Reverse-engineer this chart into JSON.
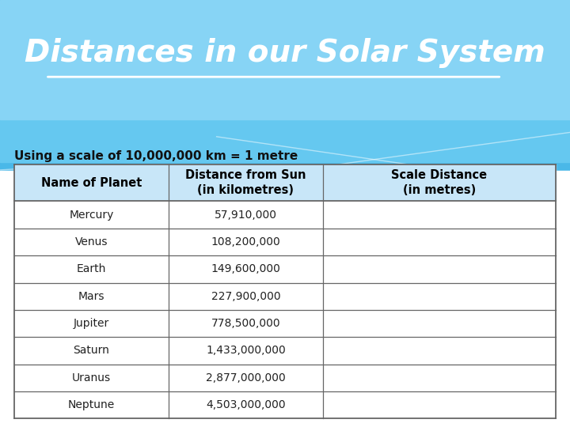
{
  "title": "Distances in our Solar System",
  "subtitle": "Using a scale of 10,000,000 km = 1 metre",
  "col_headers_line1": [
    "Name of Planet",
    "Distance from Sun",
    "Scale Distance"
  ],
  "col_headers_line2": [
    "",
    "(in kilometres)",
    "(in metres)"
  ],
  "planets": [
    "Mercury",
    "Venus",
    "Earth",
    "Mars",
    "Jupiter",
    "Saturn",
    "Uranus",
    "Neptune"
  ],
  "distances": [
    "57,910,000",
    "108,200,000",
    "149,600,000",
    "227,900,000",
    "778,500,000",
    "1,433,000,000",
    "2,877,000,000",
    "4,503,000,000"
  ],
  "bg_blue_dark": "#4ab8e8",
  "bg_blue_mid": "#65c8f0",
  "bg_blue_light": "#87d4f5",
  "bg_white": "#ffffff",
  "title_color": "#ffffff",
  "subtitle_color": "#111111",
  "header_bg": "#c8e6f8",
  "table_border": "#666666",
  "row_text_color": "#222222",
  "header_text_color": "#000000",
  "wave_color": "#ffffff",
  "fig_width": 7.2,
  "fig_height": 5.4,
  "dpi": 100
}
